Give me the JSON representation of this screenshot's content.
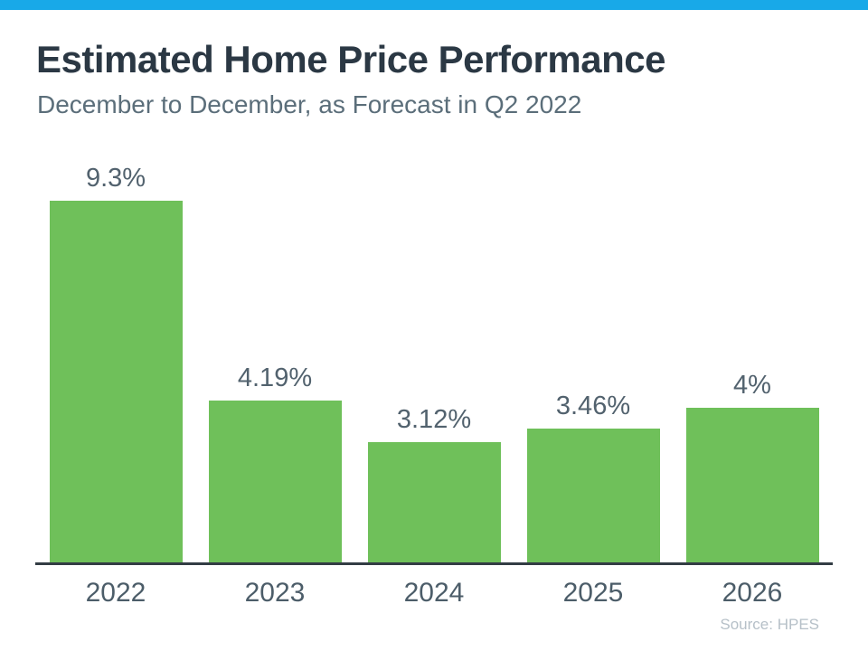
{
  "page": {
    "top_strip_color": "#18a9e8",
    "title": "Estimated Home Price Performance",
    "subtitle": "December to December, as Forecast in Q2 2022",
    "source": "Source: HPES"
  },
  "chart_data": {
    "type": "bar",
    "title": "Estimated Home Price Performance",
    "subtitle": "December to December, as Forecast in Q2 2022",
    "categories": [
      "2022",
      "2023",
      "2024",
      "2025",
      "2026"
    ],
    "values": [
      9.3,
      4.19,
      3.12,
      3.46,
      4
    ],
    "value_labels": [
      "9.3%",
      "4.19%",
      "3.12%",
      "3.46%",
      "4%"
    ],
    "xlabel": "",
    "ylabel": "",
    "ylim": [
      0,
      9.3
    ],
    "grid": false,
    "legend": false,
    "bar_color": "#6fc05a",
    "value_label_color": "#52626e",
    "tick_label_color": "#4c5d69",
    "axis_color": "#333c44",
    "source": "Source: HPES"
  }
}
